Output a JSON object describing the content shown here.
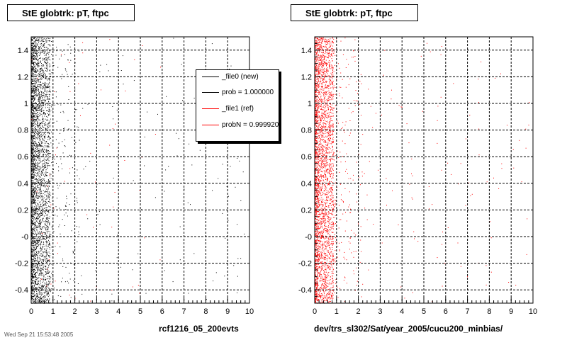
{
  "chart_data": [
    {
      "type": "scatter",
      "title": "StE globtrk: pT, ftpc",
      "xlabel": "rcf1216_05_200evts",
      "ylabel": "",
      "xlim": [
        0,
        10
      ],
      "ylim": [
        -0.5,
        1.5
      ],
      "x_ticks": [
        "0",
        "1",
        "2",
        "3",
        "4",
        "5",
        "6",
        "7",
        "8",
        "9",
        "10"
      ],
      "y_ticks": [
        "-0.4",
        "-0.2",
        "-0",
        "0.2",
        "0.4",
        "0.6",
        "0.8",
        "1",
        "1.2",
        "1.4"
      ],
      "grid": true,
      "series": [
        {
          "name": "_file0 (new)",
          "color": "#000000",
          "density_profile": "dense near x=0-0.8, sparse tail to x=10"
        },
        {
          "name": "_file1 (ref)",
          "color": "#ff0000",
          "density_profile": "overlaid, sparse"
        }
      ],
      "legend": {
        "placement": "top-right",
        "entries": [
          {
            "label": "_file0 (new)",
            "color": "#000000"
          },
          {
            "label": "prob = 1.000000",
            "color": "#000000"
          },
          {
            "label": "_file1 (ref)",
            "color": "#ff0000"
          },
          {
            "label": "probN = 0.999920",
            "color": "#ff0000"
          }
        ]
      }
    },
    {
      "type": "scatter",
      "title": "StE globtrk: pT, ftpc",
      "xlabel": "dev/trs_sl302/Sat/year_2005/cucu200_minbias/",
      "ylabel": "",
      "xlim": [
        0,
        10
      ],
      "ylim": [
        -0.5,
        1.5
      ],
      "x_ticks": [
        "0",
        "1",
        "2",
        "3",
        "4",
        "5",
        "6",
        "7",
        "8",
        "9",
        "10"
      ],
      "y_ticks": [
        "-0.4",
        "-0.2",
        "-0",
        "0.2",
        "0.4",
        "0.6",
        "0.8",
        "1",
        "1.2",
        "1.4"
      ],
      "grid": true,
      "series": [
        {
          "name": "_file1 (ref)",
          "color": "#ff0000",
          "density_profile": "dense near x=0-0.8, sparse tail to x=10"
        }
      ]
    }
  ],
  "footer_text": "Wed Sep 21 15:53:48 2005"
}
